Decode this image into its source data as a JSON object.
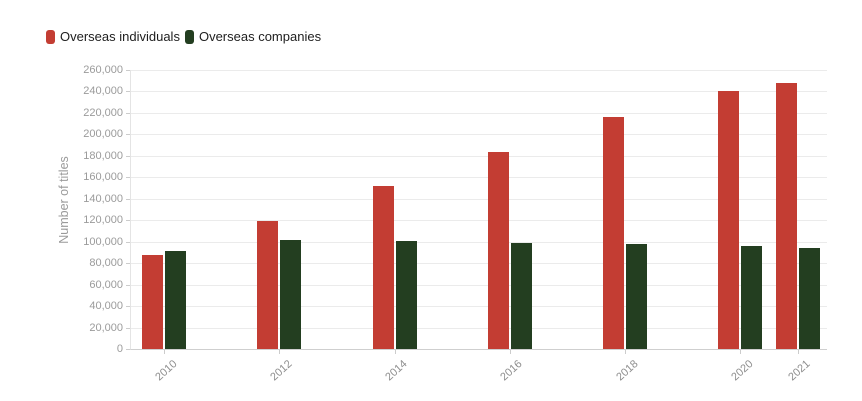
{
  "legend": {
    "items": [
      {
        "label": "Overseas individuals",
        "color": "#c33d33"
      },
      {
        "label": "Overseas companies",
        "color": "#233e20"
      }
    ]
  },
  "chart_data": {
    "type": "bar",
    "title": "",
    "xlabel": "",
    "ylabel": "Number of titles",
    "categories": [
      2010,
      2012,
      2014,
      2016,
      2018,
      2020,
      2021
    ],
    "series": [
      {
        "name": "Overseas individuals",
        "color": "#c33d33",
        "values": [
          88000,
          119000,
          152000,
          184000,
          216000,
          240000,
          248000
        ]
      },
      {
        "name": "Overseas companies",
        "color": "#233e20",
        "values": [
          91000,
          102000,
          101000,
          99000,
          98000,
          96000,
          94000
        ]
      }
    ],
    "ylim": [
      0,
      260000
    ],
    "ytick_step": 20000,
    "ytick_labels": [
      "0",
      "20,000",
      "40,000",
      "60,000",
      "80,000",
      "100,000",
      "120,000",
      "140,000",
      "160,000",
      "180,000",
      "200,000",
      "220,000",
      "240,000",
      "260,000"
    ],
    "grid": true,
    "legend_position": "top-left",
    "x_scale": "linear-year"
  }
}
